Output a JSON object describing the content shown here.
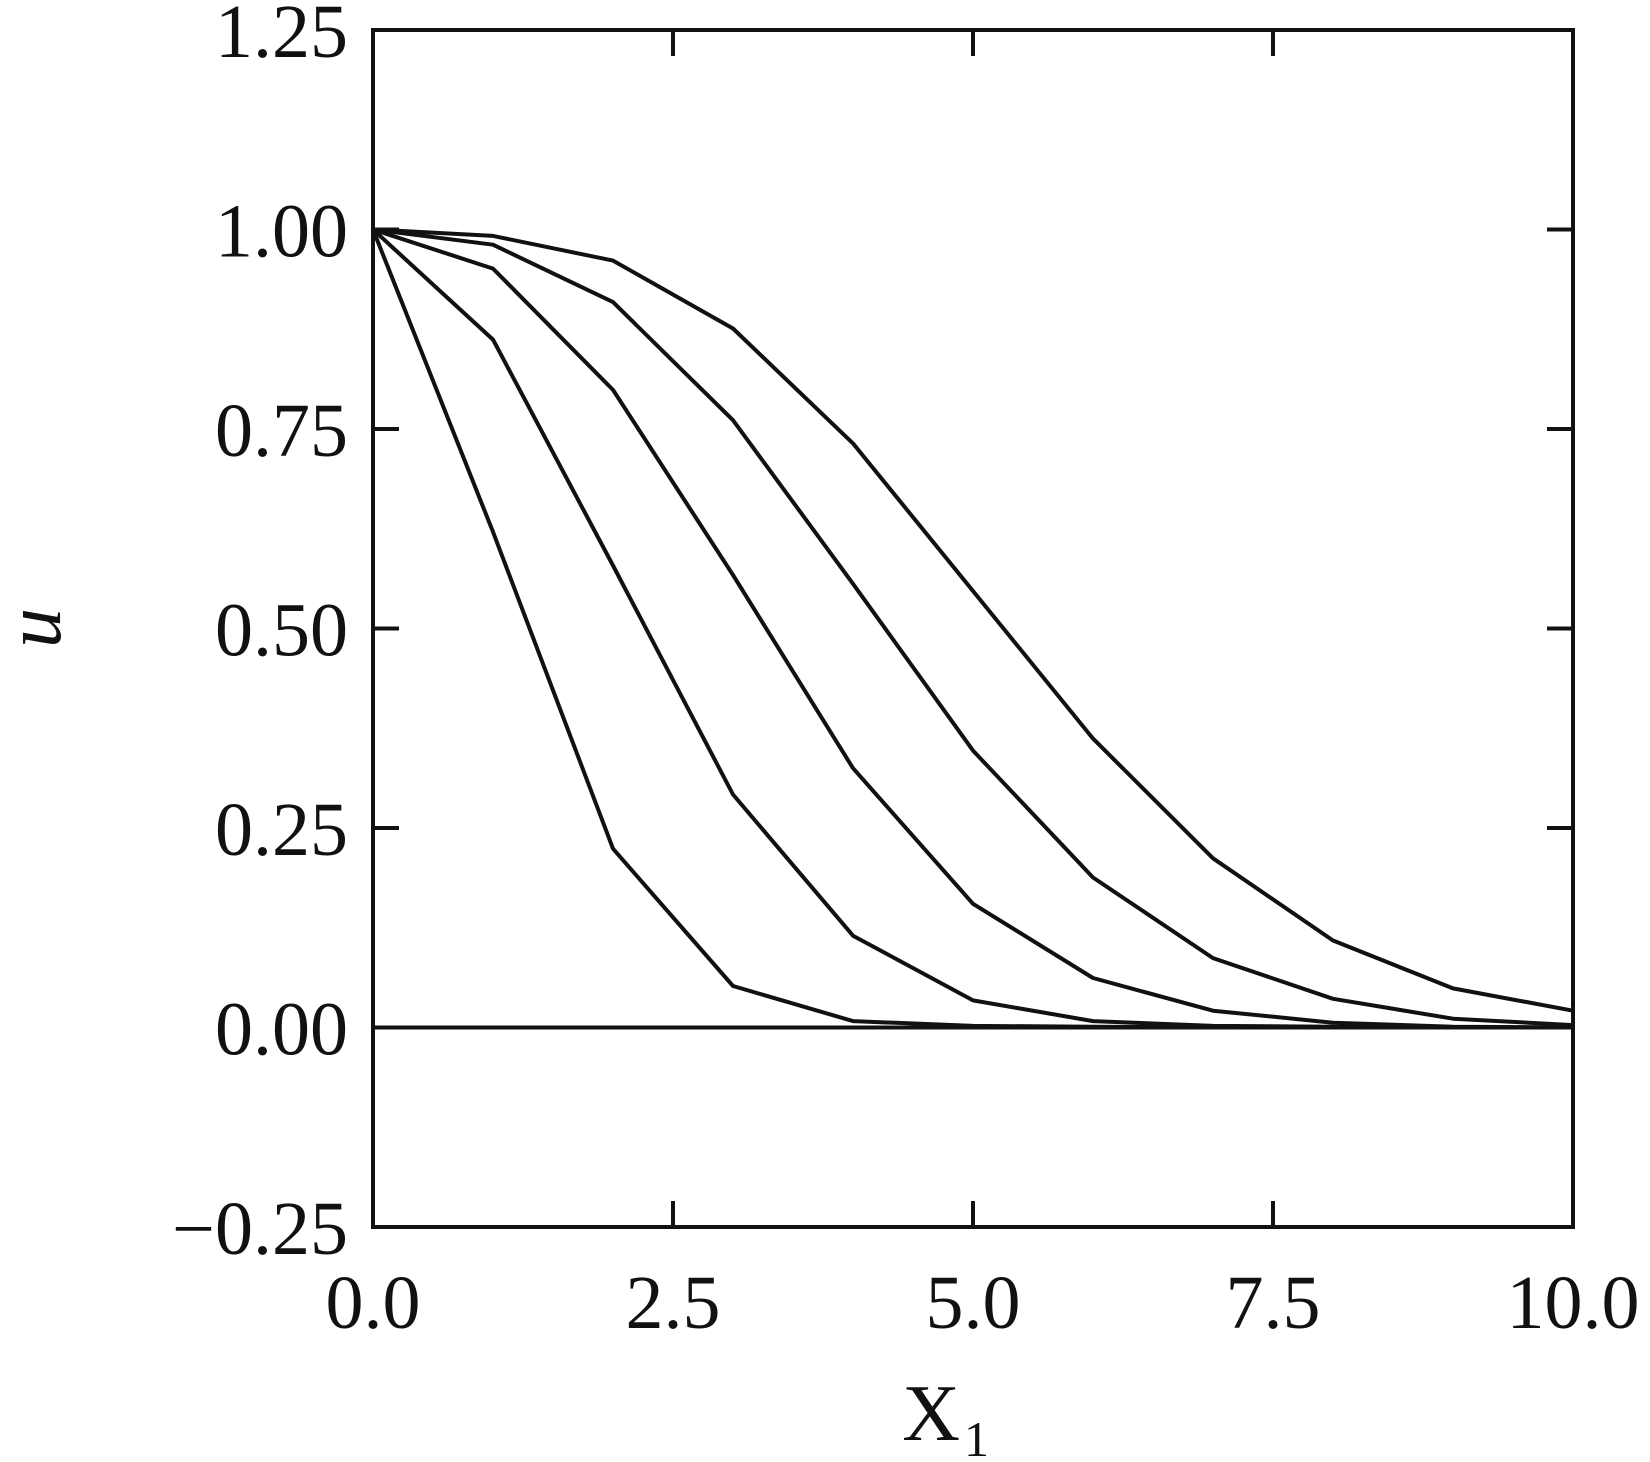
{
  "chart_data": {
    "type": "line",
    "xlabel": "X",
    "xlabel_subscript": "1",
    "ylabel": "u",
    "xlim": [
      0,
      10
    ],
    "ylim": [
      -0.25,
      1.25
    ],
    "xticks": [
      0,
      2.5,
      5,
      7.5,
      10
    ],
    "xtick_labels": [
      "0.0",
      "2.5",
      "5.0",
      "7.5",
      "10.0"
    ],
    "yticks": [
      -0.25,
      0,
      0.25,
      0.5,
      0.75,
      1,
      1.25
    ],
    "ytick_labels": [
      "−0.25",
      "0.00",
      "0.25",
      "0.50",
      "0.75",
      "1.00",
      "1.25"
    ],
    "grid": false,
    "legend": false,
    "line_color": "#111111",
    "x": [
      0,
      1,
      2,
      3,
      4,
      5,
      6,
      7,
      8,
      9,
      10
    ],
    "series": [
      {
        "values": [
          1.0,
          0.621,
          0.224,
          0.052,
          0.008,
          0.002,
          0.001,
          0.0,
          0.0,
          0.0,
          0.0
        ]
      },
      {
        "values": [
          1.0,
          0.862,
          0.579,
          0.292,
          0.115,
          0.034,
          0.008,
          0.002,
          0.001,
          0.0,
          0.0
        ]
      },
      {
        "values": [
          1.0,
          0.951,
          0.799,
          0.567,
          0.325,
          0.155,
          0.062,
          0.021,
          0.006,
          0.001,
          0.0
        ]
      },
      {
        "values": [
          1.0,
          0.981,
          0.909,
          0.761,
          0.556,
          0.347,
          0.188,
          0.087,
          0.036,
          0.011,
          0.003
        ]
      },
      {
        "values": [
          1.0,
          0.992,
          0.961,
          0.876,
          0.732,
          0.547,
          0.362,
          0.212,
          0.109,
          0.049,
          0.021
        ]
      },
      {
        "values": [
          0.0,
          0.0,
          0.0,
          0.0,
          0.0,
          0.0,
          0.0,
          0.0,
          0.0,
          0.0,
          0.0
        ]
      }
    ]
  }
}
